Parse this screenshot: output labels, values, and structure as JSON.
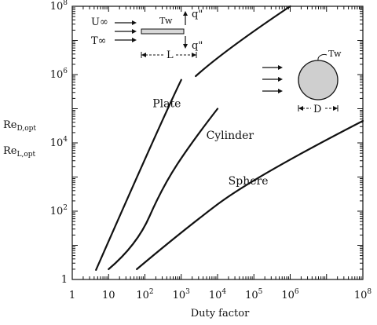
{
  "chart_data": {
    "type": "line",
    "xscale": "log",
    "yscale": "log",
    "xlim": [
      1,
      100000000
    ],
    "ylim": [
      1,
      100000000
    ],
    "grid": false,
    "xlabel": "Duty factor",
    "ylabel_lines": [
      "ReD,opt",
      "ReL,opt"
    ],
    "ylabel_main": [
      "Re",
      "Re"
    ],
    "ylabel_sub": [
      "D,opt",
      "L,opt"
    ],
    "x_ticks": [
      {
        "value": 1,
        "base": "1",
        "exp": ""
      },
      {
        "value": 10,
        "base": "10",
        "exp": ""
      },
      {
        "value": 100,
        "base": "10",
        "exp": "2"
      },
      {
        "value": 1000,
        "base": "10",
        "exp": "3"
      },
      {
        "value": 10000,
        "base": "10",
        "exp": "4"
      },
      {
        "value": 100000,
        "base": "10",
        "exp": "5"
      },
      {
        "value": 1000000,
        "base": "10",
        "exp": "6"
      },
      {
        "value": 100000000,
        "base": "10",
        "exp": "8"
      }
    ],
    "y_ticks": [
      {
        "value": 1,
        "base": "1",
        "exp": ""
      },
      {
        "value": 100,
        "base": "10",
        "exp": "2"
      },
      {
        "value": 10000,
        "base": "10",
        "exp": "4"
      },
      {
        "value": 1000000,
        "base": "10",
        "exp": "6"
      },
      {
        "value": 100000000,
        "base": "10",
        "exp": "8"
      }
    ],
    "series": [
      {
        "name": "Plate",
        "segments": [
          [
            [
              4.5,
              1.9
            ],
            [
              300,
              50000
            ],
            [
              1000,
              700000
            ]
          ],
          [
            [
              2500,
              900000
            ],
            [
              15000,
              5000000
            ],
            [
              1000000,
              100000000
            ]
          ]
        ]
      },
      {
        "name": "Cylinder",
        "segments": [
          [
            [
              10,
              2.0
            ],
            [
              60,
              10
            ],
            [
              300,
              500
            ],
            [
              2000,
              11000
            ],
            [
              10000,
              100000
            ]
          ]
        ]
      },
      {
        "name": "Sphere",
        "segments": [
          [
            [
              60,
              2.0
            ],
            [
              1000,
              25
            ],
            [
              100000,
              1000
            ],
            [
              100000000,
              44000
            ]
          ]
        ]
      }
    ],
    "series_labels": [
      {
        "text": "Plate",
        "x": 400,
        "y": 110000
      },
      {
        "text": "Cylinder",
        "x": 22000,
        "y": 13000
      },
      {
        "text": "Sphere",
        "x": 70000,
        "y": 600
      }
    ]
  },
  "insets": {
    "plate": {
      "u_inf": "U∞",
      "t_inf": "T∞",
      "t_w": "Tw",
      "q_top": "q\"",
      "q_bottom": "q\"",
      "length": "L"
    },
    "sphere": {
      "t_w": "Tw",
      "diameter": "D"
    }
  }
}
